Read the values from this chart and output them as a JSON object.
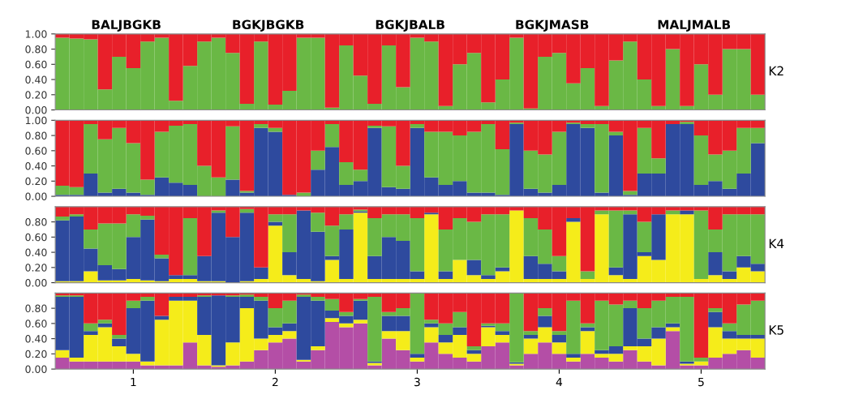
{
  "chart_data": [
    {
      "type": "bar",
      "stacked": true,
      "title": "K2",
      "tick_labels": "y",
      "annotations": [
        "BALJBGKB",
        "BGKJBGKB",
        "BGKJBALB",
        "BGKJMASB",
        "MALJMALB"
      ],
      "categories": [
        null,
        null,
        null,
        null,
        null,
        null,
        null,
        null,
        null,
        null,
        null,
        null,
        null,
        null,
        null,
        null,
        null,
        null,
        null,
        null,
        null,
        null,
        null,
        null,
        null,
        null,
        null,
        null,
        null,
        null,
        null,
        null,
        null,
        null,
        null,
        null,
        null,
        null,
        null,
        null,
        null,
        null,
        null,
        null,
        null,
        null,
        null,
        null,
        null,
        null
      ],
      "ylim": [
        0,
        1
      ],
      "yticks": [
        {
          "value": 0,
          "label": "0.00"
        },
        {
          "value": 0.2,
          "label": "0.20"
        },
        {
          "value": 0.4,
          "label": "0.40"
        },
        {
          "value": 0.6,
          "label": "0.60"
        },
        {
          "value": 0.8,
          "label": "0.80"
        },
        {
          "value": 1,
          "label": "1.00"
        }
      ],
      "series": [
        {
          "color": "#6ab845",
          "values": [
            0.95,
            0.94,
            0.93,
            0.27,
            0.7,
            0.55,
            0.9,
            0.95,
            0.12,
            0.58,
            0.9,
            0.95,
            0.75,
            0.08,
            0.9,
            0.07,
            0.25,
            0.95,
            0.95,
            0.03,
            0.85,
            0.45,
            0.08,
            0.85,
            0.3,
            0.95,
            0.9,
            0.05,
            0.6,
            0.75,
            0.1,
            0.4,
            0.95,
            0.02,
            0.7,
            0.75,
            0.35,
            0.55,
            0.05,
            0.65,
            0.9,
            0.4,
            0.05,
            0.8,
            0.05,
            0.6,
            0.2,
            0.8,
            0.8,
            0.2
          ]
        },
        {
          "color": "#e8202a",
          "values": [
            0.05,
            0.06,
            0.07,
            0.73,
            0.3,
            0.45,
            0.1,
            0.05,
            0.88,
            0.42,
            0.1,
            0.05,
            0.25,
            0.92,
            0.1,
            0.93,
            0.75,
            0.05,
            0.05,
            0.97,
            0.15,
            0.55,
            0.92,
            0.15,
            0.7,
            0.05,
            0.1,
            0.95,
            0.4,
            0.25,
            0.9,
            0.6,
            0.05,
            0.98,
            0.3,
            0.25,
            0.65,
            0.45,
            0.95,
            0.35,
            0.1,
            0.6,
            0.95,
            0.2,
            0.95,
            0.4,
            0.8,
            0.2,
            0.2,
            0.8
          ]
        }
      ]
    },
    {
      "type": "bar",
      "stacked": true,
      "tick_labels": "y",
      "categories": [
        null,
        null,
        null,
        null,
        null,
        null,
        null,
        null,
        null,
        null,
        null,
        null,
        null,
        null,
        null,
        null,
        null,
        null,
        null,
        null,
        null,
        null,
        null,
        null,
        null,
        null,
        null,
        null,
        null,
        null,
        null,
        null,
        null,
        null,
        null,
        null,
        null,
        null,
        null,
        null,
        null,
        null,
        null,
        null,
        null,
        null,
        null,
        null,
        null,
        null
      ],
      "ylim": [
        0,
        1
      ],
      "yticks": [
        {
          "value": 0,
          "label": "0.00"
        },
        {
          "value": 0.2,
          "label": "0.20"
        },
        {
          "value": 0.4,
          "label": "0.40"
        },
        {
          "value": 0.6,
          "label": "0.60"
        },
        {
          "value": 0.8,
          "label": "0.80"
        },
        {
          "value": 1,
          "label": "1.00"
        }
      ],
      "series": [
        {
          "color": "#2e4a9e",
          "values": [
            0.02,
            0.02,
            0.3,
            0.05,
            0.1,
            0.05,
            0.02,
            0.25,
            0.18,
            0.15,
            0.0,
            0.0,
            0.22,
            0.05,
            0.9,
            0.85,
            0.02,
            0.0,
            0.35,
            0.65,
            0.15,
            0.2,
            0.9,
            0.12,
            0.1,
            0.9,
            0.25,
            0.15,
            0.2,
            0.05,
            0.05,
            0.02,
            0.95,
            0.1,
            0.05,
            0.15,
            0.95,
            0.9,
            0.05,
            0.8,
            0.02,
            0.3,
            0.3,
            0.95,
            0.95,
            0.15,
            0.2,
            0.1,
            0.3,
            0.7
          ]
        },
        {
          "color": "#6ab845",
          "values": [
            0.12,
            0.1,
            0.65,
            0.7,
            0.8,
            0.65,
            0.2,
            0.6,
            0.75,
            0.8,
            0.4,
            0.25,
            0.7,
            0.02,
            0.05,
            0.05,
            0.0,
            0.05,
            0.25,
            0.3,
            0.3,
            0.15,
            0.03,
            0.8,
            0.3,
            0.05,
            0.6,
            0.7,
            0.6,
            0.8,
            0.9,
            0.6,
            0.02,
            0.5,
            0.5,
            0.7,
            0.02,
            0.05,
            0.9,
            0.05,
            0.05,
            0.6,
            0.2,
            0.0,
            0.03,
            0.65,
            0.35,
            0.5,
            0.6,
            0.2
          ]
        },
        {
          "color": "#e8202a",
          "values": [
            0.86,
            0.88,
            0.05,
            0.25,
            0.1,
            0.3,
            0.78,
            0.15,
            0.07,
            0.05,
            0.6,
            0.75,
            0.08,
            0.93,
            0.05,
            0.1,
            0.98,
            0.95,
            0.4,
            0.05,
            0.55,
            0.65,
            0.07,
            0.08,
            0.6,
            0.05,
            0.15,
            0.15,
            0.2,
            0.15,
            0.05,
            0.38,
            0.03,
            0.4,
            0.45,
            0.15,
            0.03,
            0.05,
            0.05,
            0.15,
            0.93,
            0.1,
            0.5,
            0.05,
            0.02,
            0.2,
            0.45,
            0.4,
            0.1,
            0.1
          ]
        }
      ]
    },
    {
      "type": "bar",
      "stacked": true,
      "title": "K4",
      "tick_labels": "y",
      "categories": [
        null,
        null,
        null,
        null,
        null,
        null,
        null,
        null,
        null,
        null,
        null,
        null,
        null,
        null,
        null,
        null,
        null,
        null,
        null,
        null,
        null,
        null,
        null,
        null,
        null,
        null,
        null,
        null,
        null,
        null,
        null,
        null,
        null,
        null,
        null,
        null,
        null,
        null,
        null,
        null,
        null,
        null,
        null,
        null,
        null,
        null,
        null,
        null,
        null,
        null
      ],
      "ylim": [
        0,
        1
      ],
      "yticks": [
        {
          "value": 0,
          "label": "0.00"
        },
        {
          "value": 0.2,
          "label": "0.20"
        },
        {
          "value": 0.4,
          "label": "0.40"
        },
        {
          "value": 0.6,
          "label": "0.60"
        },
        {
          "value": 0.8,
          "label": "0.80"
        }
      ],
      "series": [
        {
          "color": "#f5ec1a",
          "values": [
            0.02,
            0.02,
            0.15,
            0.03,
            0.03,
            0.05,
            0.03,
            0.02,
            0.05,
            0.05,
            0.02,
            0.02,
            0.0,
            0.02,
            0.05,
            0.75,
            0.1,
            0.05,
            0.02,
            0.3,
            0.05,
            0.92,
            0.05,
            0.05,
            0.05,
            0.05,
            0.9,
            0.05,
            0.3,
            0.1,
            0.05,
            0.15,
            0.95,
            0.05,
            0.05,
            0.05,
            0.8,
            0.05,
            0.9,
            0.1,
            0.05,
            0.35,
            0.3,
            0.9,
            0.9,
            0.05,
            0.1,
            0.05,
            0.2,
            0.15
          ]
        },
        {
          "color": "#2e4a9e",
          "values": [
            0.8,
            0.85,
            0.3,
            0.2,
            0.15,
            0.55,
            0.8,
            0.3,
            0.05,
            0.05,
            0.33,
            0.9,
            0.6,
            0.9,
            0.15,
            0.05,
            0.3,
            0.9,
            0.65,
            0.05,
            0.65,
            0.02,
            0.3,
            0.55,
            0.5,
            0.1,
            0.02,
            0.1,
            0.0,
            0.2,
            0.05,
            0.05,
            0.0,
            0.3,
            0.2,
            0.1,
            0.05,
            0.0,
            0.0,
            0.1,
            0.85,
            0.05,
            0.6,
            0.0,
            0.05,
            0.0,
            0.3,
            0.1,
            0.15,
            0.1
          ]
        },
        {
          "color": "#6ab845",
          "values": [
            0.05,
            0.03,
            0.25,
            0.55,
            0.6,
            0.3,
            0.05,
            0.05,
            0.0,
            0.75,
            0.0,
            0.03,
            0.0,
            0.05,
            0.0,
            0.1,
            0.5,
            0.0,
            0.25,
            0.4,
            0.2,
            0.02,
            0.5,
            0.3,
            0.35,
            0.7,
            0.0,
            0.55,
            0.55,
            0.5,
            0.8,
            0.7,
            0.0,
            0.5,
            0.45,
            0.2,
            0.0,
            0.1,
            0.05,
            0.75,
            0.05,
            0.4,
            0.0,
            0.05,
            0.0,
            0.9,
            0.3,
            0.75,
            0.55,
            0.65
          ]
        },
        {
          "color": "#e8202a",
          "values": [
            0.13,
            0.1,
            0.3,
            0.22,
            0.22,
            0.1,
            0.12,
            0.63,
            0.9,
            0.15,
            0.65,
            0.05,
            0.4,
            0.03,
            0.8,
            0.1,
            0.1,
            0.05,
            0.08,
            0.25,
            0.1,
            0.04,
            0.15,
            0.1,
            0.1,
            0.15,
            0.08,
            0.3,
            0.15,
            0.2,
            0.1,
            0.1,
            0.05,
            0.15,
            0.3,
            0.65,
            0.15,
            0.85,
            0.05,
            0.05,
            0.05,
            0.2,
            0.1,
            0.05,
            0.05,
            0.05,
            0.3,
            0.1,
            0.1,
            0.1
          ]
        }
      ]
    },
    {
      "type": "bar",
      "stacked": true,
      "title": "K5",
      "categories": [
        null,
        null,
        null,
        null,
        null,
        "1",
        null,
        null,
        null,
        null,
        null,
        null,
        null,
        null,
        null,
        "2",
        null,
        null,
        null,
        null,
        null,
        null,
        null,
        null,
        null,
        "3",
        null,
        null,
        null,
        null,
        null,
        null,
        null,
        null,
        null,
        "4",
        null,
        null,
        null,
        null,
        null,
        null,
        null,
        null,
        null,
        "5",
        null,
        null,
        null,
        null
      ],
      "ylim": [
        0,
        1
      ],
      "yticks": [
        {
          "value": 0,
          "label": "0.00"
        },
        {
          "value": 0.2,
          "label": "0.20"
        },
        {
          "value": 0.4,
          "label": "0.40"
        },
        {
          "value": 0.6,
          "label": "0.60"
        },
        {
          "value": 0.8,
          "label": "0.80"
        }
      ],
      "series": [
        {
          "color": "#b44ea6",
          "values": [
            0.15,
            0.1,
            0.1,
            0.1,
            0.1,
            0.1,
            0.05,
            0.05,
            0.05,
            0.35,
            0.05,
            0.03,
            0.05,
            0.1,
            0.25,
            0.35,
            0.4,
            0.1,
            0.25,
            0.62,
            0.55,
            0.6,
            0.05,
            0.4,
            0.25,
            0.1,
            0.35,
            0.2,
            0.15,
            0.1,
            0.3,
            0.35,
            0.05,
            0.2,
            0.35,
            0.2,
            0.1,
            0.2,
            0.15,
            0.1,
            0.25,
            0.1,
            0.05,
            0.5,
            0.05,
            0.05,
            0.15,
            0.2,
            0.25,
            0.15
          ]
        },
        {
          "color": "#f5ec1a",
          "values": [
            0.1,
            0.05,
            0.35,
            0.45,
            0.2,
            0.1,
            0.05,
            0.6,
            0.85,
            0.55,
            0.4,
            0.02,
            0.3,
            0.7,
            0.15,
            0.1,
            0.1,
            0.02,
            0.05,
            0.05,
            0.05,
            0.05,
            0.03,
            0.1,
            0.25,
            0.05,
            0.2,
            0.15,
            0.3,
            0.1,
            0.25,
            0.1,
            0.02,
            0.2,
            0.2,
            0.15,
            0.05,
            0.3,
            0.05,
            0.1,
            0.05,
            0.2,
            0.35,
            0.05,
            0.02,
            0.05,
            0.4,
            0.2,
            0.15,
            0.25
          ]
        },
        {
          "color": "#2e4a9e",
          "values": [
            0.7,
            0.8,
            0.05,
            0.05,
            0.1,
            0.6,
            0.8,
            0.05,
            0.05,
            0.05,
            0.5,
            0.92,
            0.6,
            0.15,
            0.5,
            0.1,
            0.1,
            0.83,
            0.6,
            0.1,
            0.1,
            0.25,
            0.02,
            0.2,
            0.2,
            0.05,
            0.05,
            0.1,
            0.1,
            0.05,
            0.02,
            0.05,
            0.02,
            0.05,
            0.15,
            0.1,
            0.05,
            0.05,
            0.05,
            0.1,
            0.5,
            0.1,
            0.15,
            0.05,
            0.03,
            0.0,
            0.2,
            0.1,
            0.05,
            0.05
          ]
        },
        {
          "color": "#6ab845",
          "values": [
            0.02,
            0.02,
            0.1,
            0.05,
            0.05,
            0.1,
            0.05,
            0.0,
            0.0,
            0.0,
            0.02,
            0.0,
            0.02,
            0.03,
            0.05,
            0.25,
            0.3,
            0.03,
            0.05,
            0.15,
            0.05,
            0.02,
            0.85,
            0.05,
            0.1,
            0.8,
            0.05,
            0.15,
            0.2,
            0.05,
            0.03,
            0.1,
            0.91,
            0.05,
            0.1,
            0.05,
            0.7,
            0.05,
            0.65,
            0.55,
            0.1,
            0.4,
            0.35,
            0.35,
            0.85,
            0.05,
            0.05,
            0.1,
            0.4,
            0.45
          ]
        },
        {
          "color": "#e8202a",
          "values": [
            0.03,
            0.03,
            0.4,
            0.35,
            0.55,
            0.1,
            0.05,
            0.3,
            0.05,
            0.05,
            0.03,
            0.03,
            0.03,
            0.02,
            0.05,
            0.2,
            0.1,
            0.02,
            0.05,
            0.08,
            0.25,
            0.08,
            0.05,
            0.25,
            0.2,
            0.0,
            0.35,
            0.4,
            0.25,
            0.7,
            0.4,
            0.4,
            0.0,
            0.5,
            0.2,
            0.5,
            0.1,
            0.4,
            0.1,
            0.15,
            0.1,
            0.2,
            0.1,
            0.05,
            0.05,
            0.85,
            0.2,
            0.4,
            0.15,
            0.1
          ]
        }
      ]
    }
  ]
}
